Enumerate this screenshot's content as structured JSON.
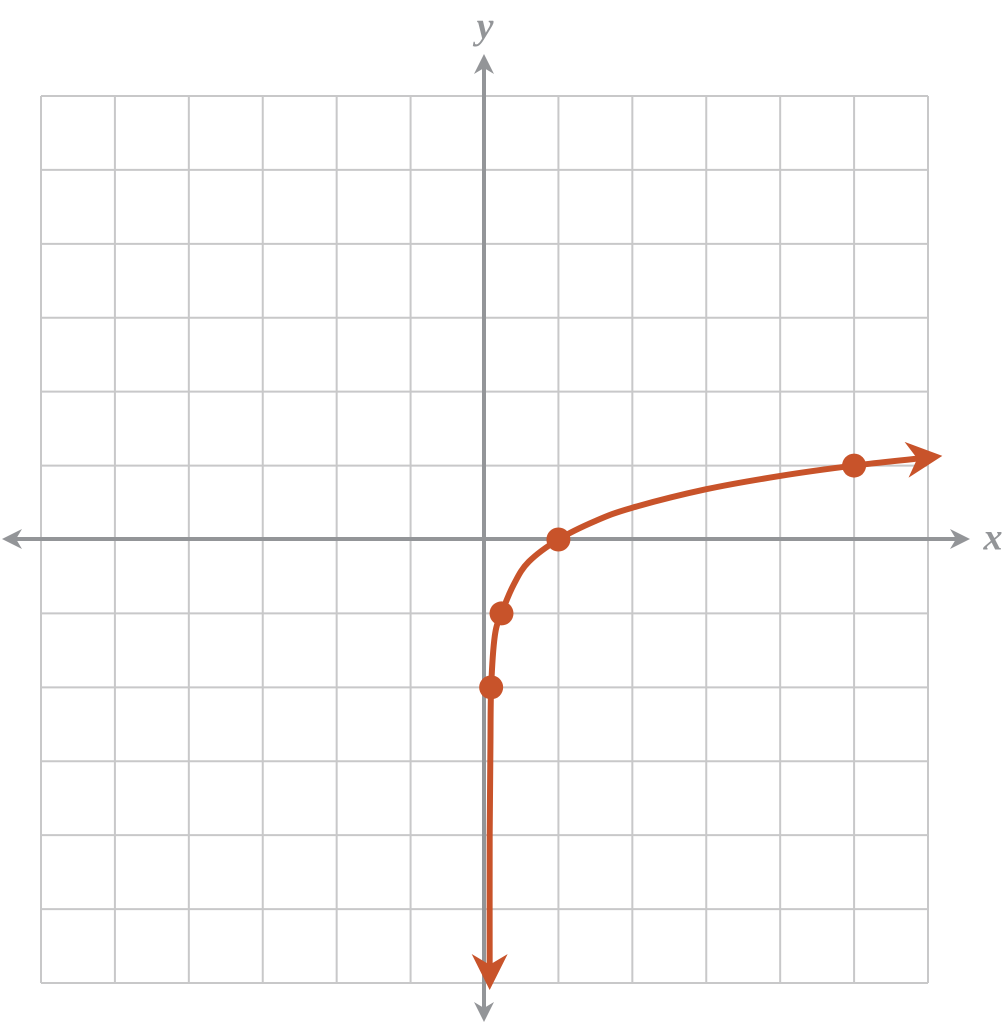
{
  "chart_data": {
    "type": "line",
    "x_label": "x",
    "y_label": "y",
    "xlim": [
      -6,
      6
    ],
    "ylim": [
      -6,
      6
    ],
    "xticks": [
      -6,
      -5,
      -4,
      -3,
      -2,
      -1,
      0,
      1,
      2,
      3,
      4,
      5,
      6
    ],
    "yticks": [
      -6,
      -5,
      -4,
      -3,
      -2,
      -1,
      0,
      1,
      2,
      3,
      4,
      5,
      6
    ],
    "grid": true,
    "series": [
      {
        "color": "#c8532a",
        "marks": "curve",
        "x": [
          0.07,
          0.07,
          0.08,
          0.09,
          0.14,
          0.23,
          0.4,
          0.6,
          1,
          1.5,
          2,
          3,
          4,
          5,
          6
        ],
        "values": [
          -5.9,
          -4,
          -2.8,
          -2,
          -1.3,
          -1,
          -0.6,
          -0.3,
          0,
          0.25,
          0.43,
          0.68,
          0.86,
          1,
          1.11
        ]
      },
      {
        "color": "#c8532a",
        "marks": "points",
        "x": [
          0.09,
          0.23,
          1,
          5
        ],
        "values": [
          -2,
          -1,
          0,
          1
        ]
      }
    ]
  }
}
